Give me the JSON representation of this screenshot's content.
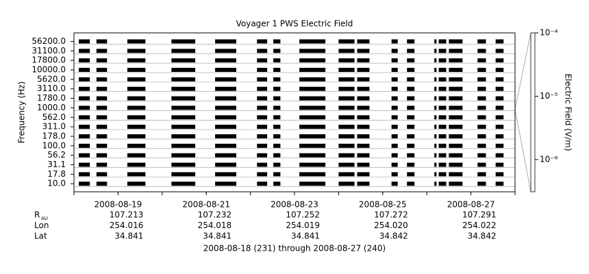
{
  "chart_data": {
    "type": "spectrogram",
    "title": "Voyager 1 PWS Electric Field",
    "ylabel": "Frequency (Hz)",
    "channels": [
      "10.0",
      "17.8",
      "31.1",
      "56.2",
      "100.0",
      "178.0",
      "311.0",
      "562.0",
      "1000.0",
      "1780.0",
      "3110.0",
      "5620.0",
      "10000.0",
      "17800.0",
      "31100.0",
      "56200.0"
    ],
    "xlim": [
      231,
      241
    ],
    "xticks": [
      {
        "value": 232,
        "label": "2008-08-19"
      },
      {
        "value": 234,
        "label": "2008-08-21"
      },
      {
        "value": 236,
        "label": "2008-08-23"
      },
      {
        "value": 238,
        "label": "2008-08-25"
      },
      {
        "value": 240,
        "label": "2008-08-27"
      }
    ],
    "segments": [
      [
        231.11,
        231.36
      ],
      [
        231.51,
        231.75
      ],
      [
        232.21,
        232.62
      ],
      [
        233.21,
        233.75
      ],
      [
        234.2,
        234.68
      ],
      [
        235.15,
        235.38
      ],
      [
        235.52,
        235.68
      ],
      [
        236.11,
        236.7
      ],
      [
        237.0,
        237.36
      ],
      [
        237.42,
        237.7
      ],
      [
        238.2,
        238.34
      ],
      [
        238.55,
        238.72
      ],
      [
        239.17,
        239.22
      ],
      [
        239.27,
        239.44
      ],
      [
        239.5,
        239.81
      ],
      [
        240.15,
        240.34
      ],
      [
        240.56,
        240.74
      ]
    ],
    "color": "#000000",
    "colorbar": {
      "label": "Electric Field (V/m)",
      "scale": "log",
      "zlim": [
        3.1e-07,
        0.0001
      ],
      "zticks": [
        {
          "value": 0.0001,
          "label": "10⁻⁴"
        },
        {
          "value": 1e-05,
          "label": "10⁻⁵"
        },
        {
          "value": 1e-06,
          "label": "10⁻⁶"
        }
      ]
    },
    "ephemeris": [
      {
        "name": "R",
        "sub": "AU",
        "values": [
          "107.213",
          "107.232",
          "107.252",
          "107.272",
          "107.291"
        ]
      },
      {
        "name": "Lon",
        "values": [
          "254.016",
          "254.018",
          "254.019",
          "254.020",
          "254.022"
        ]
      },
      {
        "name": "Lat",
        "values": [
          "34.841",
          "34.841",
          "34.841",
          "34.842",
          "34.842"
        ]
      }
    ],
    "footer": "2008-08-18 (231) through 2008-08-27 (240)"
  }
}
